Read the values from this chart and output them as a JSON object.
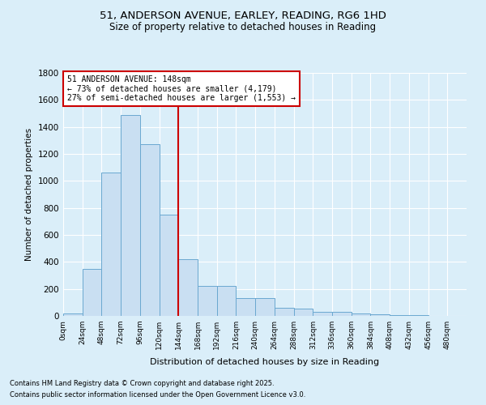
{
  "title_line1": "51, ANDERSON AVENUE, EARLEY, READING, RG6 1HD",
  "title_line2": "Size of property relative to detached houses in Reading",
  "xlabel": "Distribution of detached houses by size in Reading",
  "ylabel": "Number of detached properties",
  "footnote1": "Contains HM Land Registry data © Crown copyright and database right 2025.",
  "footnote2": "Contains public sector information licensed under the Open Government Licence v3.0.",
  "annotation_line1": "51 ANDERSON AVENUE: 148sqm",
  "annotation_line2": "← 73% of detached houses are smaller (4,179)",
  "annotation_line3": "27% of semi-detached houses are larger (1,553) →",
  "bar_color": "#c9dff2",
  "bar_edge_color": "#6aa8d0",
  "vline_color": "#cc0000",
  "vline_x": 6.0,
  "background_color": "#daeef9",
  "bins": [
    "0sqm",
    "24sqm",
    "48sqm",
    "72sqm",
    "96sqm",
    "120sqm",
    "144sqm",
    "168sqm",
    "192sqm",
    "216sqm",
    "240sqm",
    "264sqm",
    "288sqm",
    "312sqm",
    "336sqm",
    "360sqm",
    "384sqm",
    "408sqm",
    "432sqm",
    "456sqm",
    "480sqm"
  ],
  "values": [
    20,
    350,
    1060,
    1490,
    1270,
    750,
    420,
    220,
    220,
    130,
    130,
    60,
    55,
    30,
    30,
    18,
    10,
    8,
    5,
    3,
    2
  ],
  "ylim": [
    0,
    1800
  ],
  "yticks": [
    0,
    200,
    400,
    600,
    800,
    1000,
    1200,
    1400,
    1600,
    1800
  ],
  "grid_color": "#ffffff",
  "fig_width": 6.0,
  "fig_height": 5.0,
  "dpi": 100
}
